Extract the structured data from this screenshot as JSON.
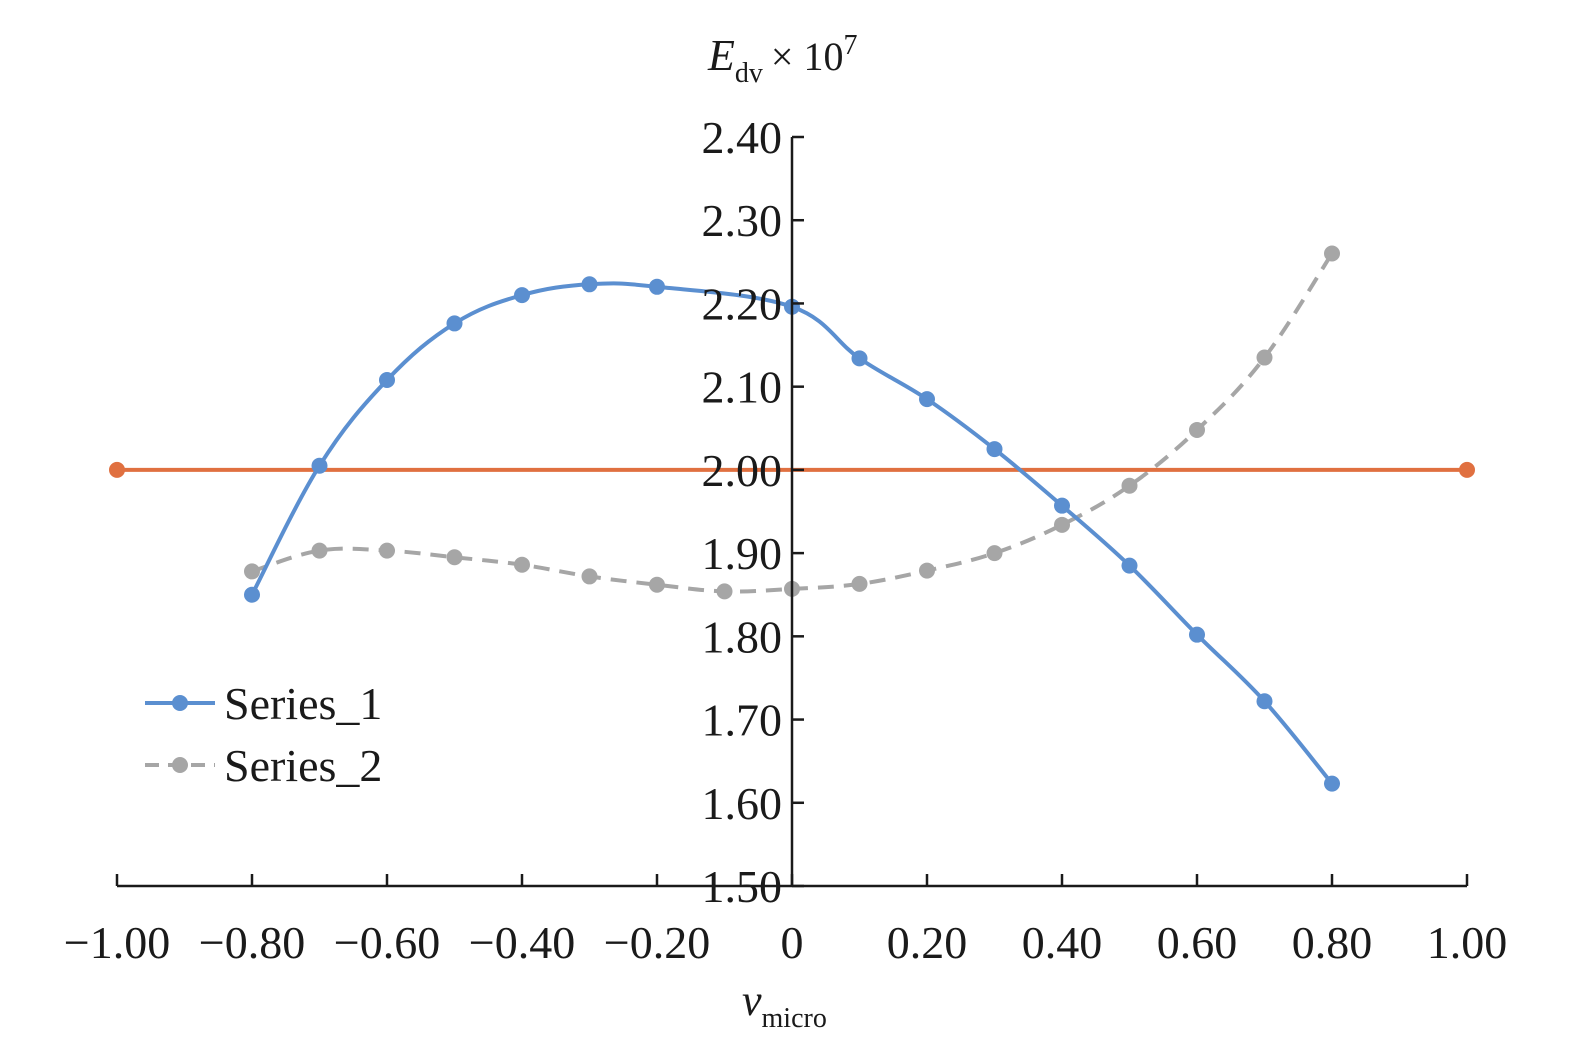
{
  "chart_data": {
    "type": "line",
    "xlabel": {
      "main": "v",
      "sub": "micro"
    },
    "ylabel": {
      "main": "E",
      "sub": "dv",
      "suffix": "× 10",
      "sup": "7"
    },
    "xlim": [
      -1.0,
      1.0
    ],
    "ylim": [
      1.5,
      2.4
    ],
    "x_ticks": [
      -1.0,
      -0.8,
      -0.6,
      -0.4,
      -0.2,
      0,
      0.2,
      0.4,
      0.6,
      0.8,
      1.0
    ],
    "x_tick_labels": [
      "−1.00",
      "−0.80",
      "−0.60",
      "−0.40",
      "−0.20",
      "0",
      "0.20",
      "0.40",
      "0.60",
      "0.80",
      "1.00"
    ],
    "y_ticks": [
      1.5,
      1.6,
      1.7,
      1.8,
      1.9,
      2.0,
      2.1,
      2.2,
      2.3,
      2.4
    ],
    "y_tick_labels": [
      "1.50",
      "1.60",
      "1.70",
      "1.80",
      "1.90",
      "2.00",
      "2.10",
      "2.20",
      "2.30",
      "2.40"
    ],
    "grid": false,
    "legend_position": "left",
    "series": [
      {
        "name": "Series_1",
        "color": "#5b8fd0",
        "style": "solid",
        "x": [
          -0.8,
          -0.7,
          -0.6,
          -0.5,
          -0.4,
          -0.3,
          -0.2,
          0,
          0.1,
          0.2,
          0.3,
          0.4,
          0.5,
          0.6,
          0.7,
          0.8
        ],
        "y": [
          1.85,
          2.005,
          2.108,
          2.176,
          2.21,
          2.223,
          2.22,
          2.196,
          2.134,
          2.085,
          2.025,
          1.957,
          1.885,
          1.802,
          1.722,
          1.623
        ]
      },
      {
        "name": "Series_2",
        "color": "#a6a6a6",
        "style": "dashed",
        "x": [
          -0.8,
          -0.7,
          -0.6,
          -0.5,
          -0.4,
          -0.3,
          -0.2,
          -0.1,
          0,
          0.1,
          0.2,
          0.3,
          0.4,
          0.5,
          0.6,
          0.7,
          0.8
        ],
        "y": [
          1.878,
          1.903,
          1.903,
          1.895,
          1.886,
          1.872,
          1.862,
          1.854,
          1.857,
          1.863,
          1.879,
          1.9,
          1.934,
          1.981,
          2.048,
          2.135,
          2.26
        ]
      },
      {
        "name": "",
        "color": "#e07040",
        "style": "solid",
        "x": [
          -1.0,
          1.0
        ],
        "y": [
          2.0,
          2.0
        ]
      }
    ]
  }
}
